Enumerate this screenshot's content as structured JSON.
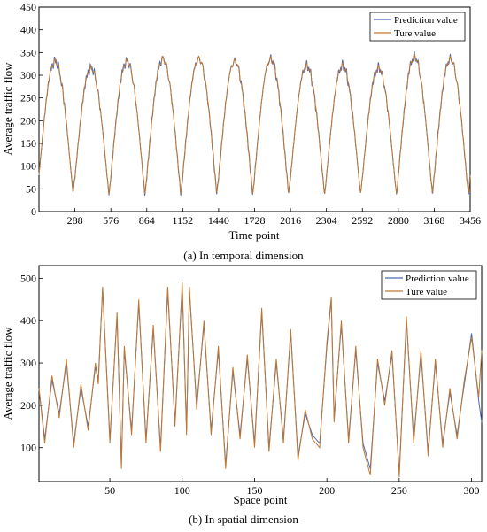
{
  "figure": {
    "caption_a": "(a) In temporal dimension",
    "caption_b": "(b) In spatial dimension"
  },
  "colors": {
    "prediction": "#4a68b8",
    "true": "#c07830"
  },
  "chart_data": [
    {
      "id": "temporal",
      "type": "line",
      "title": "",
      "xlabel": "Time point",
      "ylabel": "Average traffic flow",
      "xlim": [
        0,
        3456
      ],
      "ylim": [
        0,
        450
      ],
      "xticks": [
        288,
        576,
        864,
        1152,
        1440,
        1728,
        2016,
        2304,
        2592,
        2880,
        3168,
        3456
      ],
      "yticks": [
        0,
        50,
        100,
        150,
        200,
        250,
        300,
        350,
        400,
        450
      ],
      "legend": "top-right",
      "grid": false,
      "daily_peaks": [
        335,
        320,
        335,
        340,
        340,
        335,
        340,
        325,
        325,
        320,
        345,
        340
      ],
      "daily_troughs": [
        42,
        38,
        38,
        38,
        40,
        38,
        40,
        38,
        40,
        38,
        40,
        40
      ],
      "period": 288,
      "series": [
        {
          "name": "Prediction value",
          "color_key": "prediction"
        },
        {
          "name": "Ture value",
          "color_key": "true"
        }
      ]
    },
    {
      "id": "spatial",
      "type": "line",
      "title": "",
      "xlabel": "Space point",
      "ylabel": "Average traffic flow",
      "xlim": [
        1,
        307
      ],
      "ylim": [
        20,
        530
      ],
      "xticks": [
        50,
        100,
        150,
        200,
        250,
        300
      ],
      "yticks": [
        100,
        200,
        300,
        400,
        500
      ],
      "legend": "top-right",
      "grid": false,
      "x": [
        1,
        5,
        10,
        15,
        20,
        25,
        30,
        35,
        40,
        42,
        45,
        50,
        55,
        58,
        60,
        65,
        70,
        75,
        80,
        85,
        90,
        95,
        100,
        103,
        105,
        110,
        115,
        120,
        125,
        130,
        135,
        140,
        145,
        150,
        155,
        160,
        165,
        170,
        175,
        180,
        185,
        190,
        195,
        200,
        203,
        205,
        210,
        215,
        220,
        225,
        230,
        235,
        240,
        245,
        250,
        255,
        260,
        265,
        270,
        275,
        280,
        285,
        290,
        295,
        300,
        305,
        307
      ],
      "series": [
        {
          "name": "Prediction value",
          "color_key": "prediction",
          "values": [
            240,
            120,
            260,
            180,
            300,
            110,
            240,
            150,
            290,
            260,
            475,
            120,
            410,
            60,
            330,
            140,
            440,
            120,
            380,
            100,
            470,
            160,
            480,
            140,
            470,
            200,
            390,
            140,
            330,
            60,
            280,
            130,
            310,
            110,
            420,
            100,
            300,
            120,
            370,
            80,
            180,
            130,
            110,
            340,
            450,
            170,
            390,
            120,
            330,
            110,
            50,
            300,
            210,
            320,
            40,
            400,
            120,
            320,
            90,
            300,
            110,
            230,
            130,
            250,
            370,
            210,
            160
          ]
        },
        {
          "name": "Ture value",
          "color_key": "true",
          "values": [
            240,
            110,
            270,
            170,
            310,
            100,
            250,
            140,
            300,
            250,
            480,
            110,
            420,
            50,
            340,
            130,
            450,
            110,
            390,
            90,
            480,
            150,
            490,
            130,
            480,
            190,
            400,
            130,
            340,
            50,
            290,
            120,
            320,
            100,
            430,
            90,
            310,
            110,
            380,
            70,
            190,
            120,
            100,
            350,
            455,
            160,
            400,
            110,
            340,
            100,
            35,
            310,
            200,
            330,
            30,
            410,
            110,
            330,
            80,
            310,
            100,
            240,
            120,
            260,
            360,
            220,
            330
          ]
        }
      ]
    }
  ]
}
